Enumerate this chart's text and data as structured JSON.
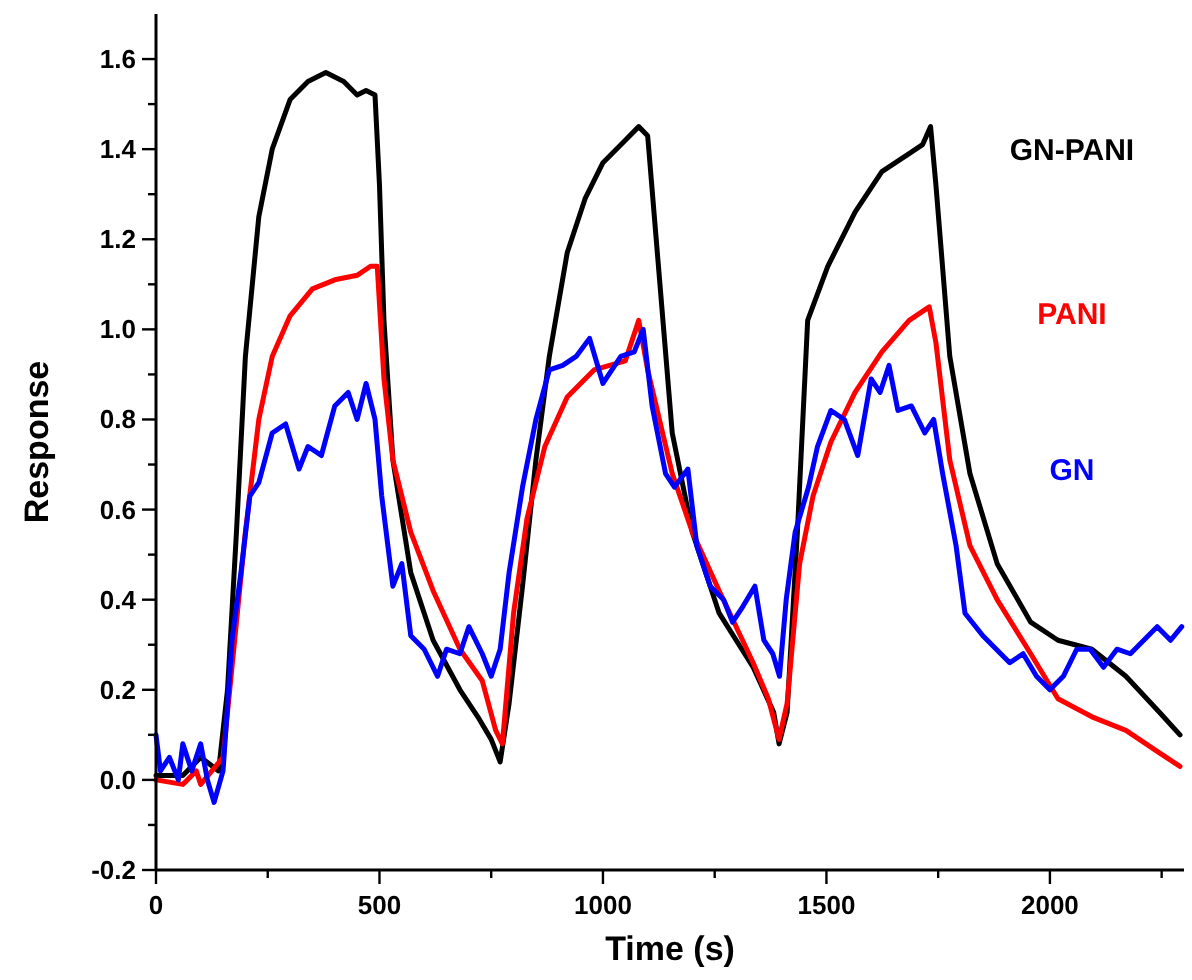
{
  "chart_data": {
    "type": "line",
    "xlabel": "Time (s)",
    "ylabel": "Response",
    "xlim": [
      0,
      2300
    ],
    "ylim": [
      -0.2,
      1.7
    ],
    "xticks": [
      0,
      {
        "value": 250,
        "label": null
      },
      500,
      {
        "value": 750,
        "label": null
      },
      1000,
      {
        "value": 1250,
        "label": null
      },
      1500,
      {
        "value": 1750,
        "label": null
      },
      2000,
      {
        "value": 2250,
        "label": null
      }
    ],
    "yticks": [
      {
        "value": -0.2,
        "label": "-0.2"
      },
      {
        "value": -0.1,
        "label": null
      },
      {
        "value": 0,
        "label": "0.0"
      },
      {
        "value": 0.1,
        "label": null
      },
      {
        "value": 0.2,
        "label": "0.2"
      },
      {
        "value": 0.3,
        "label": null
      },
      {
        "value": 0.4,
        "label": "0.4"
      },
      {
        "value": 0.5,
        "label": null
      },
      {
        "value": 0.6,
        "label": "0.6"
      },
      {
        "value": 0.7,
        "label": null
      },
      {
        "value": 0.8,
        "label": "0.8"
      },
      {
        "value": 0.9,
        "label": null
      },
      {
        "value": 1,
        "label": "1.0"
      },
      {
        "value": 1.1,
        "label": null
      },
      {
        "value": 1.2,
        "label": "1.2"
      },
      {
        "value": 1.3,
        "label": null
      },
      {
        "value": 1.4,
        "label": "1.4"
      },
      {
        "value": 1.5,
        "label": null
      },
      {
        "value": 1.6,
        "label": "1.6"
      }
    ],
    "grid": false,
    "marker": "none",
    "line_style": "solid",
    "series": [
      {
        "name": "GN-PANI",
        "color": "#000000",
        "x": [
          0,
          60,
          100,
          140,
          160,
          180,
          200,
          230,
          260,
          300,
          340,
          380,
          420,
          450,
          470,
          490,
          500,
          510,
          530,
          570,
          620,
          680,
          720,
          750,
          770,
          790,
          820,
          850,
          880,
          920,
          960,
          1000,
          1050,
          1080,
          1100,
          1155,
          1200,
          1260,
          1336,
          1382,
          1394,
          1412,
          1435,
          1458,
          1503,
          1564,
          1624,
          1685,
          1715,
          1733,
          1745,
          1776,
          1821,
          1882,
          1957,
          2018,
          2094,
          2170,
          2245,
          2291
        ],
        "values": [
          0.01,
          0.01,
          0.05,
          0.02,
          0.2,
          0.55,
          0.94,
          1.25,
          1.4,
          1.51,
          1.55,
          1.57,
          1.55,
          1.52,
          1.53,
          1.52,
          1.32,
          1.02,
          0.71,
          0.46,
          0.31,
          0.2,
          0.14,
          0.09,
          0.04,
          0.17,
          0.43,
          0.71,
          0.94,
          1.17,
          1.29,
          1.37,
          1.42,
          1.45,
          1.43,
          0.77,
          0.55,
          0.37,
          0.25,
          0.15,
          0.08,
          0.15,
          0.55,
          1.02,
          1.14,
          1.26,
          1.35,
          1.39,
          1.41,
          1.45,
          1.32,
          0.94,
          0.68,
          0.48,
          0.35,
          0.31,
          0.29,
          0.23,
          0.15,
          0.1
        ]
      },
      {
        "name": "PANI",
        "color": "#ff0000",
        "x": [
          0,
          60,
          90,
          100,
          150,
          170,
          200,
          230,
          260,
          300,
          350,
          400,
          450,
          480,
          495,
          510,
          530,
          570,
          620,
          680,
          730,
          760,
          775,
          800,
          830,
          870,
          920,
          980,
          1050,
          1080,
          1100,
          1155,
          1200,
          1260,
          1336,
          1370,
          1394,
          1412,
          1440,
          1470,
          1510,
          1564,
          1624,
          1685,
          1730,
          1745,
          1776,
          1821,
          1882,
          1957,
          2018,
          2094,
          2170,
          2245,
          2291
        ],
        "values": [
          0,
          -0.01,
          0.02,
          -0.01,
          0.05,
          0.25,
          0.55,
          0.8,
          0.94,
          1.03,
          1.09,
          1.11,
          1.12,
          1.14,
          1.14,
          0.89,
          0.71,
          0.55,
          0.42,
          0.29,
          0.22,
          0.11,
          0.08,
          0.37,
          0.58,
          0.74,
          0.85,
          0.91,
          0.93,
          1.02,
          0.91,
          0.68,
          0.55,
          0.42,
          0.26,
          0.18,
          0.09,
          0.17,
          0.48,
          0.63,
          0.75,
          0.86,
          0.95,
          1.02,
          1.05,
          0.97,
          0.71,
          0.52,
          0.4,
          0.28,
          0.18,
          0.14,
          0.11,
          0.06,
          0.03
        ]
      },
      {
        "name": "GN",
        "color": "#0000ff",
        "x": [
          0,
          10,
          30,
          50,
          60,
          80,
          100,
          115,
          130,
          150,
          170,
          190,
          210,
          230,
          260,
          290,
          320,
          340,
          370,
          400,
          430,
          450,
          470,
          490,
          505,
          530,
          550,
          570,
          600,
          630,
          650,
          680,
          700,
          730,
          750,
          770,
          790,
          820,
          850,
          880,
          910,
          940,
          970,
          1000,
          1040,
          1070,
          1090,
          1110,
          1140,
          1160,
          1190,
          1210,
          1240,
          1270,
          1290,
          1310,
          1340,
          1360,
          1380,
          1395,
          1410,
          1430,
          1460,
          1480,
          1510,
          1540,
          1570,
          1600,
          1620,
          1640,
          1660,
          1690,
          1720,
          1740,
          1760,
          1790,
          1810,
          1850,
          1880,
          1910,
          1940,
          1970,
          2000,
          2030,
          2060,
          2090,
          2120,
          2150,
          2180,
          2210,
          2240,
          2270,
          2295
        ],
        "values": [
          0.1,
          0.02,
          0.05,
          0,
          0.08,
          0.02,
          0.08,
          0,
          -0.05,
          0.02,
          0.31,
          0.46,
          0.63,
          0.66,
          0.77,
          0.79,
          0.69,
          0.74,
          0.72,
          0.83,
          0.86,
          0.8,
          0.88,
          0.8,
          0.63,
          0.43,
          0.48,
          0.32,
          0.29,
          0.23,
          0.29,
          0.28,
          0.34,
          0.28,
          0.23,
          0.29,
          0.46,
          0.65,
          0.8,
          0.91,
          0.92,
          0.94,
          0.98,
          0.88,
          0.94,
          0.95,
          1,
          0.83,
          0.68,
          0.65,
          0.69,
          0.52,
          0.43,
          0.4,
          0.35,
          0.38,
          0.43,
          0.31,
          0.28,
          0.23,
          0.4,
          0.55,
          0.65,
          0.74,
          0.82,
          0.8,
          0.72,
          0.89,
          0.86,
          0.92,
          0.82,
          0.83,
          0.77,
          0.8,
          0.68,
          0.52,
          0.37,
          0.32,
          0.29,
          0.26,
          0.28,
          0.23,
          0.2,
          0.23,
          0.29,
          0.29,
          0.25,
          0.29,
          0.28,
          0.31,
          0.34,
          0.31,
          0.34
        ]
      }
    ]
  }
}
